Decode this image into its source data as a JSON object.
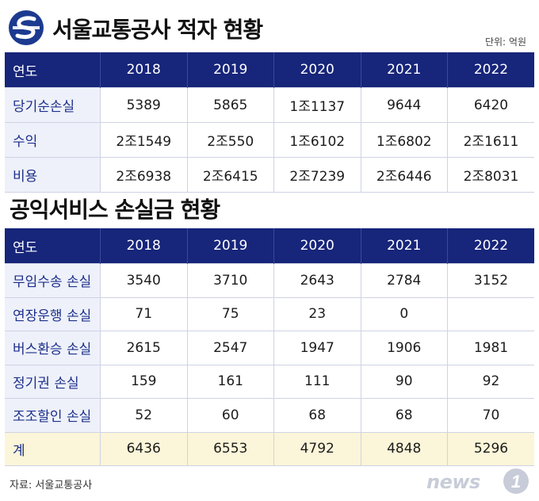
{
  "header": {
    "title": "서울교통공사 적자 현황",
    "unit": "단위: 억원"
  },
  "table1": {
    "columns": [
      "연도",
      "2018",
      "2019",
      "2020",
      "2021",
      "2022"
    ],
    "rows": [
      {
        "label": "당기순손실",
        "values": [
          "5389",
          "5865",
          "1조1137",
          "9644",
          "6420"
        ]
      },
      {
        "label": "수익",
        "values": [
          "2조1549",
          "2조550",
          "1조6102",
          "1조6802",
          "2조1611"
        ]
      },
      {
        "label": "비용",
        "values": [
          "2조6938",
          "2조6415",
          "2조7239",
          "2조6446",
          "2조8031"
        ]
      }
    ]
  },
  "section2": {
    "title": "공익서비스 손실금 현황"
  },
  "table2": {
    "columns": [
      "연도",
      "2018",
      "2019",
      "2020",
      "2021",
      "2022"
    ],
    "rows": [
      {
        "label": "무임수송 손실",
        "values": [
          "3540",
          "3710",
          "2643",
          "2784",
          "3152"
        ]
      },
      {
        "label": "연장운행 손실",
        "values": [
          "71",
          "75",
          "23",
          "0",
          ""
        ]
      },
      {
        "label": "버스환승 손실",
        "values": [
          "2615",
          "2547",
          "1947",
          "1906",
          "1981"
        ]
      },
      {
        "label": "정기권 손실",
        "values": [
          "159",
          "161",
          "111",
          "90",
          "92"
        ]
      },
      {
        "label": "조조할인 손실",
        "values": [
          "52",
          "60",
          "68",
          "68",
          "70"
        ]
      },
      {
        "label": "계",
        "values": [
          "6436",
          "6553",
          "4792",
          "4848",
          "5296"
        ]
      }
    ]
  },
  "footer": {
    "source": "자료: 서울교통공사",
    "logo_text": "news",
    "logo_badge": "1"
  },
  "colors": {
    "header_bg": "#17257a",
    "label_text": "#1c2f8a",
    "total_row_bg": "#fbf5d9",
    "logo_blue": "#1c3a8f"
  },
  "chart_data": [
    {
      "type": "table",
      "title": "서울교통공사 적자 현황",
      "unit": "단위: 억원",
      "columns": [
        "연도",
        "2018",
        "2019",
        "2020",
        "2021",
        "2022"
      ],
      "rows": [
        [
          "당기순손실",
          "5389",
          "5865",
          "1조1137",
          "9644",
          "6420"
        ],
        [
          "수익",
          "2조1549",
          "2조550",
          "1조6102",
          "1조6802",
          "2조1611"
        ],
        [
          "비용",
          "2조6938",
          "2조6415",
          "2조7239",
          "2조6446",
          "2조8031"
        ]
      ]
    },
    {
      "type": "table",
      "title": "공익서비스 손실금 현황",
      "columns": [
        "연도",
        "2018",
        "2019",
        "2020",
        "2021",
        "2022"
      ],
      "rows": [
        [
          "무임수송 손실",
          "3540",
          "3710",
          "2643",
          "2784",
          "3152"
        ],
        [
          "연장운행 손실",
          "71",
          "75",
          "23",
          "0",
          ""
        ],
        [
          "버스환승 손실",
          "2615",
          "2547",
          "1947",
          "1906",
          "1981"
        ],
        [
          "정기권 손실",
          "159",
          "161",
          "111",
          "90",
          "92"
        ],
        [
          "조조할인 손실",
          "52",
          "60",
          "68",
          "68",
          "70"
        ],
        [
          "계",
          "6436",
          "6553",
          "4792",
          "4848",
          "5296"
        ]
      ]
    }
  ]
}
